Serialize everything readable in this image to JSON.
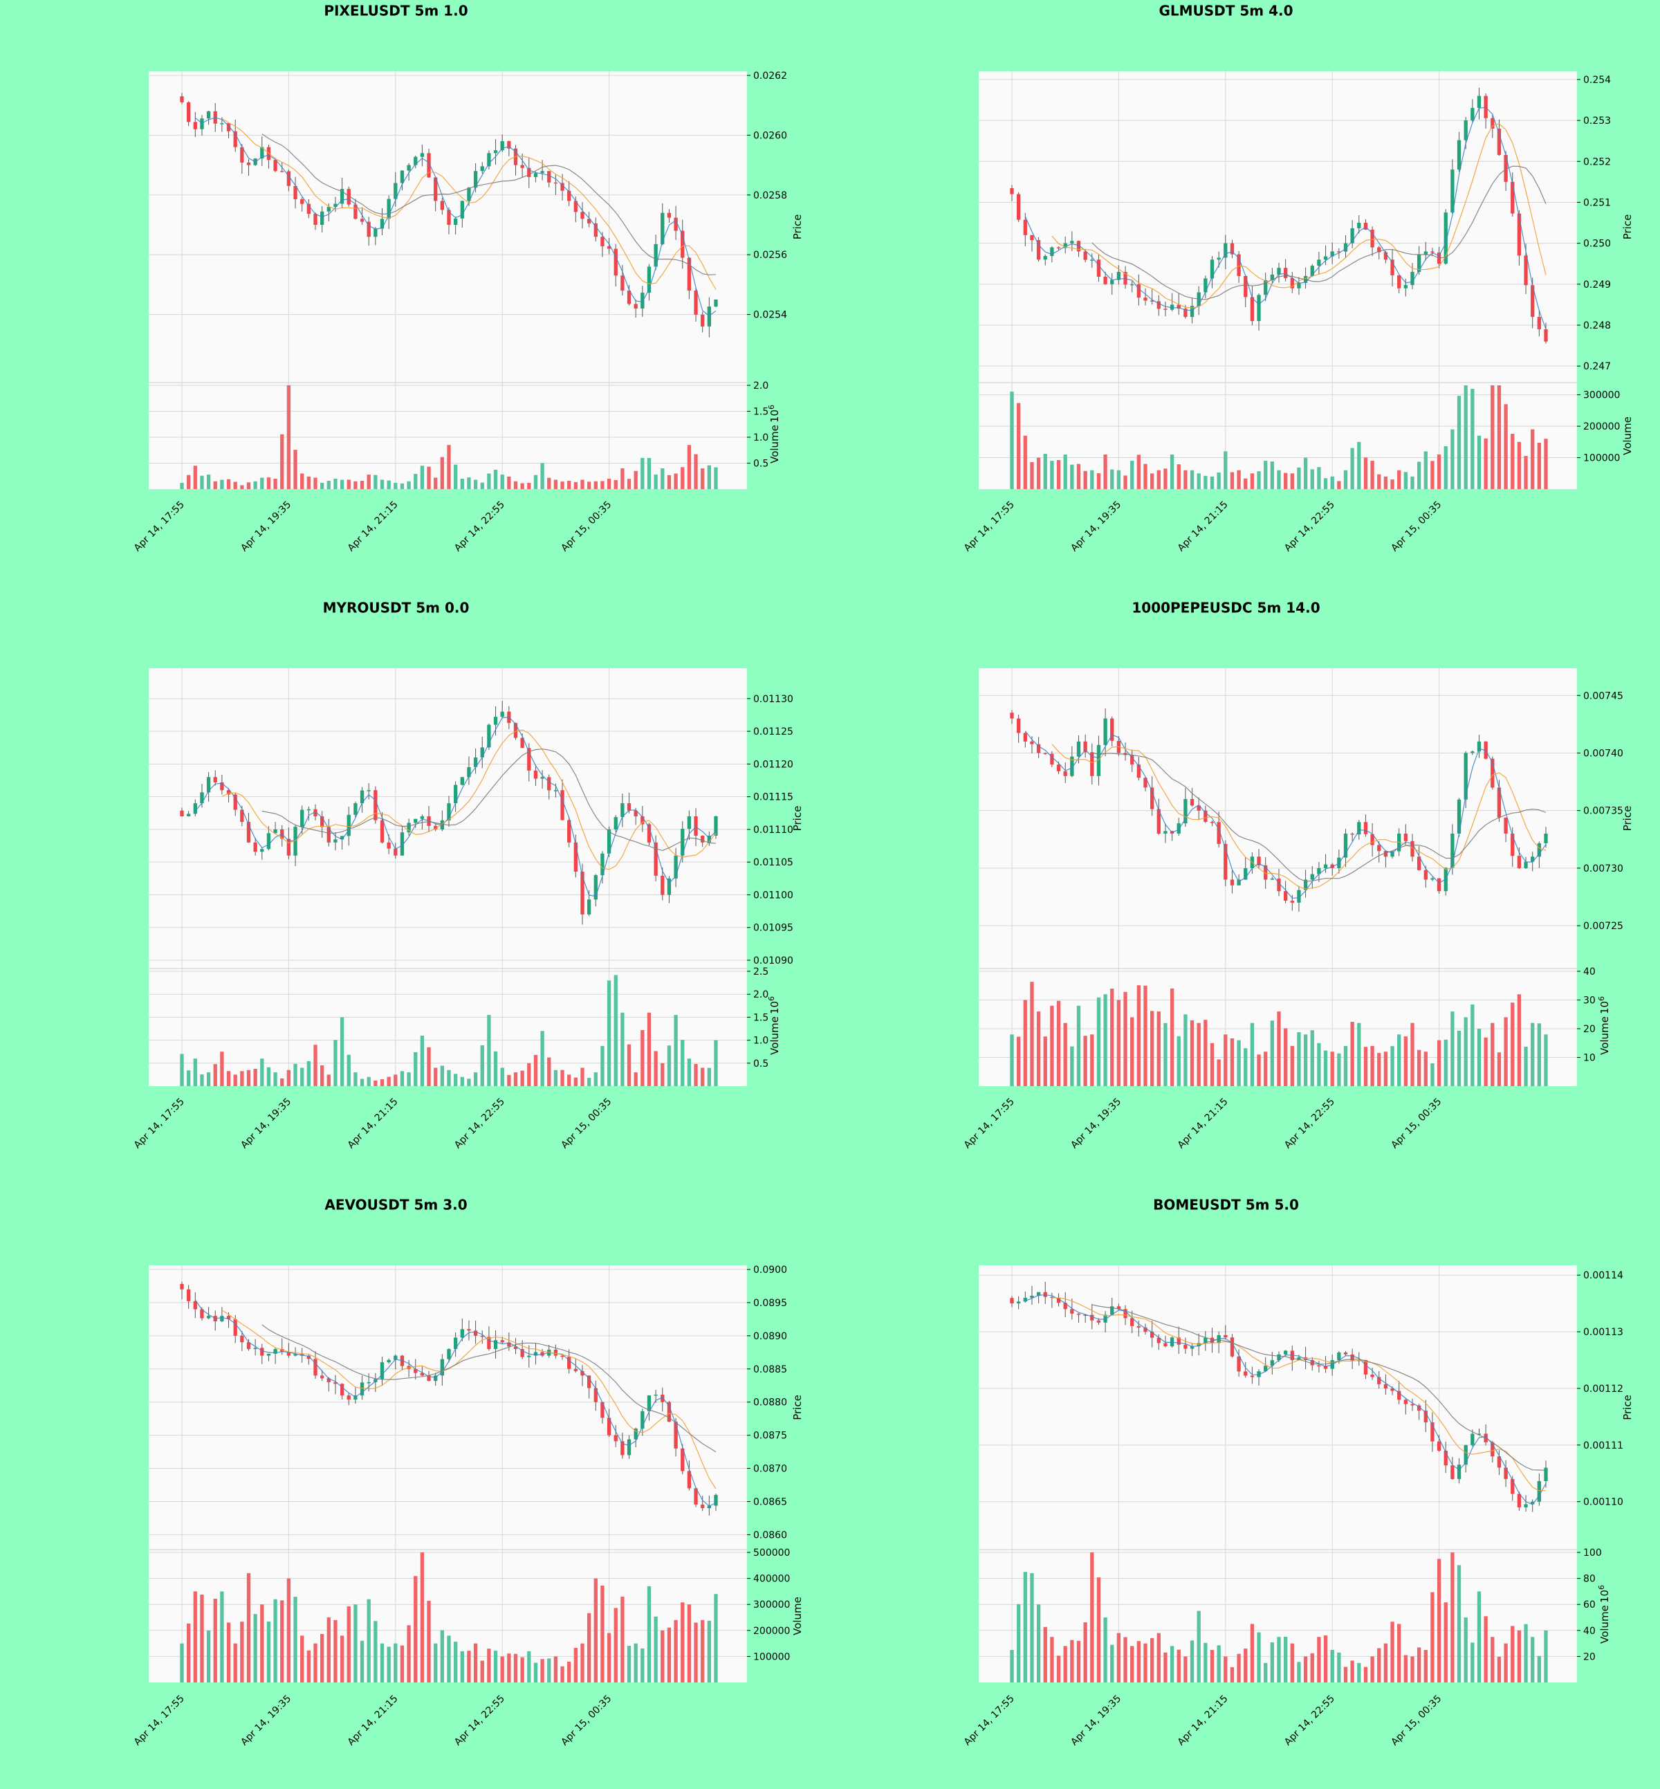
{
  "colors": {
    "background": "#8fffc1",
    "panel": "#fafafa",
    "up": "#21a37a",
    "down": "#f0444a",
    "vol_up": "#56c3a0",
    "vol_down": "#f06468",
    "ma_fast": "#3b83c4",
    "ma_mid": "#f0a030",
    "ma_slow": "#7a7a7a"
  },
  "chart_data": [
    {
      "type": "candlestick",
      "title": "PIXELUSDT 5m 1.0",
      "ylabel": "Price",
      "volume_label": "Volume",
      "volume_exponent": "10",
      "volume_exponent_power": "6",
      "x_ticks": [
        "Apr 14, 17:55",
        "Apr 14, 19:35",
        "Apr 14, 21:15",
        "Apr 14, 22:55",
        "Apr 15, 00:35"
      ],
      "price_ticks": [
        "0.0254",
        "0.0256",
        "0.0258",
        "0.0260",
        "0.0262"
      ],
      "volume_ticks": [
        "0.5",
        "1.0",
        "1.5",
        "2.0"
      ],
      "ylim": [
        0.0252,
        0.0262
      ],
      "vlim": [
        0,
        2.0
      ],
      "price_path": [
        0.02611,
        0.02602,
        0.02608,
        0.02604,
        0.02596,
        0.0259,
        0.02596,
        0.02588,
        0.02583,
        0.02577,
        0.0257,
        0.02576,
        0.02582,
        0.02572,
        0.02566,
        0.02572,
        0.02584,
        0.0259,
        0.02594,
        0.02578,
        0.0257,
        0.02578,
        0.02588,
        0.02594,
        0.02598,
        0.0259,
        0.02586,
        0.02588,
        0.02584,
        0.02578,
        0.02572,
        0.02566,
        0.02562,
        0.02548,
        0.02542,
        0.02556,
        0.02574,
        0.02568,
        0.02548,
        0.02536,
        0.02545
      ],
      "volume_path": [
        0.12,
        0.45,
        0.28,
        0.18,
        0.14,
        0.13,
        0.22,
        0.2,
        2.02,
        0.3,
        0.22,
        0.16,
        0.18,
        0.15,
        0.28,
        0.18,
        0.12,
        0.15,
        0.45,
        0.22,
        0.85,
        0.2,
        0.18,
        0.3,
        0.28,
        0.15,
        0.12,
        0.5,
        0.18,
        0.16,
        0.18,
        0.15,
        0.2,
        0.4,
        0.35,
        0.6,
        0.4,
        0.3,
        0.85,
        0.4,
        0.42
      ]
    },
    {
      "type": "candlestick",
      "title": "GLMUSDT 5m 4.0",
      "ylabel": "Price",
      "volume_label": "Volume",
      "volume_exponent": "",
      "volume_exponent_power": "",
      "x_ticks": [
        "Apr 14, 17:55",
        "Apr 14, 19:35",
        "Apr 14, 21:15",
        "Apr 14, 22:55",
        "Apr 15, 00:35"
      ],
      "price_ticks": [
        "0.247",
        "0.248",
        "0.249",
        "0.250",
        "0.251",
        "0.252",
        "0.253",
        "0.254"
      ],
      "volume_ticks": [
        "100000",
        "200000",
        "300000"
      ],
      "ylim": [
        0.2468,
        0.2541
      ],
      "vlim": [
        0,
        330000
      ],
      "price_path": [
        0.2512,
        0.2502,
        0.2496,
        0.2499,
        0.25,
        0.2498,
        0.2496,
        0.249,
        0.2493,
        0.249,
        0.2486,
        0.2484,
        0.2485,
        0.2482,
        0.2488,
        0.2496,
        0.25,
        0.2492,
        0.2481,
        0.2491,
        0.2494,
        0.2489,
        0.2492,
        0.2496,
        0.2498,
        0.25,
        0.2505,
        0.2499,
        0.2496,
        0.2489,
        0.2493,
        0.2498,
        0.2495,
        0.2518,
        0.253,
        0.2536,
        0.2528,
        0.2515,
        0.2497,
        0.2482,
        0.2476
      ],
      "volume_path": [
        310000,
        170000,
        100000,
        90000,
        110000,
        80000,
        60000,
        110000,
        60000,
        90000,
        80000,
        60000,
        110000,
        60000,
        50000,
        40000,
        120000,
        60000,
        50000,
        90000,
        60000,
        50000,
        100000,
        70000,
        40000,
        60000,
        150000,
        90000,
        40000,
        60000,
        40000,
        120000,
        110000,
        190000,
        330000,
        170000,
        330000,
        270000,
        150000,
        190000,
        160000
      ]
    },
    {
      "type": "candlestick",
      "title": "MYROUSDT 5m 0.0",
      "ylabel": "Price",
      "volume_label": "Volume",
      "volume_exponent": "10",
      "volume_exponent_power": "6",
      "x_ticks": [
        "Apr 14, 17:55",
        "Apr 14, 19:35",
        "Apr 14, 21:15",
        "Apr 14, 22:55",
        "Apr 15, 00:35"
      ],
      "price_ticks": [
        "0.01090",
        "0.01095",
        "0.01100",
        "0.01105",
        "0.01110",
        "0.01115",
        "0.01120",
        "0.01125",
        "0.01130"
      ],
      "volume_ticks": [
        "0.5",
        "1.0",
        "1.5",
        "2.0",
        "2.5"
      ],
      "ylim": [
        0.0109,
        0.01134
      ],
      "vlim": [
        0,
        2.5
      ],
      "price_path": [
        0.01112,
        0.01114,
        0.01118,
        0.01116,
        0.01113,
        0.01108,
        0.01107,
        0.0111,
        0.01106,
        0.01113,
        0.01112,
        0.01108,
        0.01109,
        0.01114,
        0.01116,
        0.01108,
        0.01106,
        0.01111,
        0.01112,
        0.0111,
        0.01114,
        0.01118,
        0.01121,
        0.01126,
        0.01128,
        0.01124,
        0.01119,
        0.01118,
        0.01116,
        0.01108,
        0.01097,
        0.01103,
        0.0111,
        0.01114,
        0.01112,
        0.01108,
        0.011,
        0.01106,
        0.01112,
        0.01108,
        0.01112
      ],
      "volume_path": [
        0.7,
        0.6,
        0.3,
        0.75,
        0.25,
        0.35,
        0.6,
        0.3,
        0.35,
        0.4,
        0.9,
        0.25,
        1.5,
        0.3,
        0.2,
        0.15,
        0.25,
        0.3,
        1.1,
        0.4,
        0.35,
        0.2,
        0.3,
        1.55,
        0.4,
        0.3,
        0.5,
        1.2,
        0.35,
        0.25,
        0.4,
        0.3,
        2.3,
        1.6,
        0.3,
        1.6,
        0.5,
        1.55,
        0.6,
        0.4,
        1.0
      ]
    },
    {
      "type": "candlestick",
      "title": "1000PEPEUSDC 5m 14.0",
      "ylabel": "Price",
      "volume_label": "Volume",
      "volume_exponent": "10",
      "volume_exponent_power": "6",
      "x_ticks": [
        "Apr 14, 17:55",
        "Apr 14, 19:35",
        "Apr 14, 21:15",
        "Apr 14, 22:55",
        "Apr 15, 00:35"
      ],
      "price_ticks": [
        "0.00725",
        "0.00730",
        "0.00735",
        "0.00740",
        "0.00745"
      ],
      "volume_ticks": [
        "10",
        "20",
        "30",
        "40"
      ],
      "ylim": [
        0.00722,
        0.00747
      ],
      "vlim": [
        0,
        40
      ],
      "price_path": [
        0.00743,
        0.00741,
        0.0074,
        0.00739,
        0.00738,
        0.00741,
        0.00738,
        0.00743,
        0.0074,
        0.00739,
        0.00737,
        0.00733,
        0.00733,
        0.00736,
        0.00735,
        0.00734,
        0.00729,
        0.00729,
        0.00731,
        0.00729,
        0.00728,
        0.00727,
        0.00729,
        0.0073,
        0.0073,
        0.00733,
        0.00734,
        0.00732,
        0.00731,
        0.00733,
        0.00731,
        0.00729,
        0.00728,
        0.00733,
        0.0074,
        0.00741,
        0.00737,
        0.00733,
        0.0073,
        0.00731,
        0.00733
      ],
      "volume_path": [
        18,
        30,
        26,
        28,
        22,
        28,
        18,
        32,
        30,
        24,
        35,
        26,
        34,
        25,
        22,
        15,
        18,
        16,
        22,
        12,
        26,
        14,
        18,
        15,
        12,
        14,
        22,
        14,
        12,
        18,
        22,
        12,
        16,
        26,
        24,
        20,
        22,
        24,
        32,
        22,
        18
      ]
    },
    {
      "type": "candlestick",
      "title": "AEVOUSDT 5m 3.0",
      "ylabel": "Price",
      "volume_label": "Volume",
      "volume_exponent": "",
      "volume_exponent_power": "",
      "x_ticks": [
        "Apr 14, 17:55",
        "Apr 14, 19:35",
        "Apr 14, 21:15",
        "Apr 14, 22:55",
        "Apr 15, 00:35"
      ],
      "price_ticks": [
        "0.0860",
        "0.0865",
        "0.0870",
        "0.0875",
        "0.0880",
        "0.0885",
        "0.0890",
        "0.0895",
        "0.0900"
      ],
      "volume_ticks": [
        "100000",
        "200000",
        "300000",
        "400000",
        "500000"
      ],
      "ylim": [
        0.0859,
        0.09
      ],
      "vlim": [
        0,
        500000
      ],
      "price_path": [
        0.0897,
        0.0894,
        0.0893,
        0.0893,
        0.089,
        0.0888,
        0.0887,
        0.0888,
        0.0887,
        0.0887,
        0.0884,
        0.0883,
        0.0881,
        0.0881,
        0.0883,
        0.0886,
        0.0887,
        0.0885,
        0.0884,
        0.0884,
        0.0888,
        0.0891,
        0.089,
        0.0888,
        0.0889,
        0.0888,
        0.0887,
        0.0887,
        0.0887,
        0.0885,
        0.0884,
        0.088,
        0.0875,
        0.0872,
        0.0876,
        0.0881,
        0.088,
        0.0873,
        0.0867,
        0.0864,
        0.0866
      ],
      "volume_path": [
        150000,
        350000,
        200000,
        350000,
        150000,
        420000,
        300000,
        320000,
        400000,
        180000,
        150000,
        250000,
        180000,
        300000,
        320000,
        150000,
        150000,
        220000,
        500000,
        150000,
        180000,
        120000,
        150000,
        130000,
        100000,
        110000,
        120000,
        90000,
        100000,
        80000,
        150000,
        400000,
        190000,
        330000,
        150000,
        370000,
        200000,
        240000,
        300000,
        240000,
        340000
      ]
    },
    {
      "type": "candlestick",
      "title": "BOMEUSDT 5m 5.0",
      "ylabel": "Price",
      "volume_label": "Volume",
      "volume_exponent": "10",
      "volume_exponent_power": "6",
      "x_ticks": [
        "Apr 14, 17:55",
        "Apr 14, 19:35",
        "Apr 14, 21:15",
        "Apr 14, 22:55",
        "Apr 15, 00:35"
      ],
      "price_ticks": [
        "0.00110",
        "0.00111",
        "0.00112",
        "0.00113",
        "0.00114"
      ],
      "volume_ticks": [
        "20",
        "40",
        "60",
        "80",
        "100"
      ],
      "ylim": [
        0.001093,
        0.001141
      ],
      "vlim": [
        0,
        100
      ],
      "price_path": [
        0.001135,
        0.001136,
        0.001137,
        0.001136,
        0.001134,
        0.001133,
        0.001132,
        0.001133,
        0.001134,
        0.001131,
        0.00113,
        0.001128,
        0.001129,
        0.001127,
        0.001128,
        0.001128,
        0.001129,
        0.001123,
        0.001122,
        0.001124,
        0.001126,
        0.001125,
        0.001125,
        0.001124,
        0.001125,
        0.001126,
        0.001125,
        0.001122,
        0.00112,
        0.001118,
        0.001117,
        0.001114,
        0.001109,
        0.001104,
        0.00111,
        0.001112,
        0.001108,
        0.001104,
        0.001099,
        0.0011,
        0.001106
      ],
      "volume_path": [
        25,
        85,
        60,
        35,
        28,
        32,
        100,
        50,
        38,
        28,
        30,
        38,
        28,
        20,
        55,
        25,
        20,
        22,
        45,
        15,
        35,
        30,
        20,
        35,
        25,
        12,
        15,
        20,
        30,
        45,
        20,
        25,
        95,
        100,
        50,
        70,
        35,
        30,
        40,
        35,
        40
      ]
    }
  ]
}
